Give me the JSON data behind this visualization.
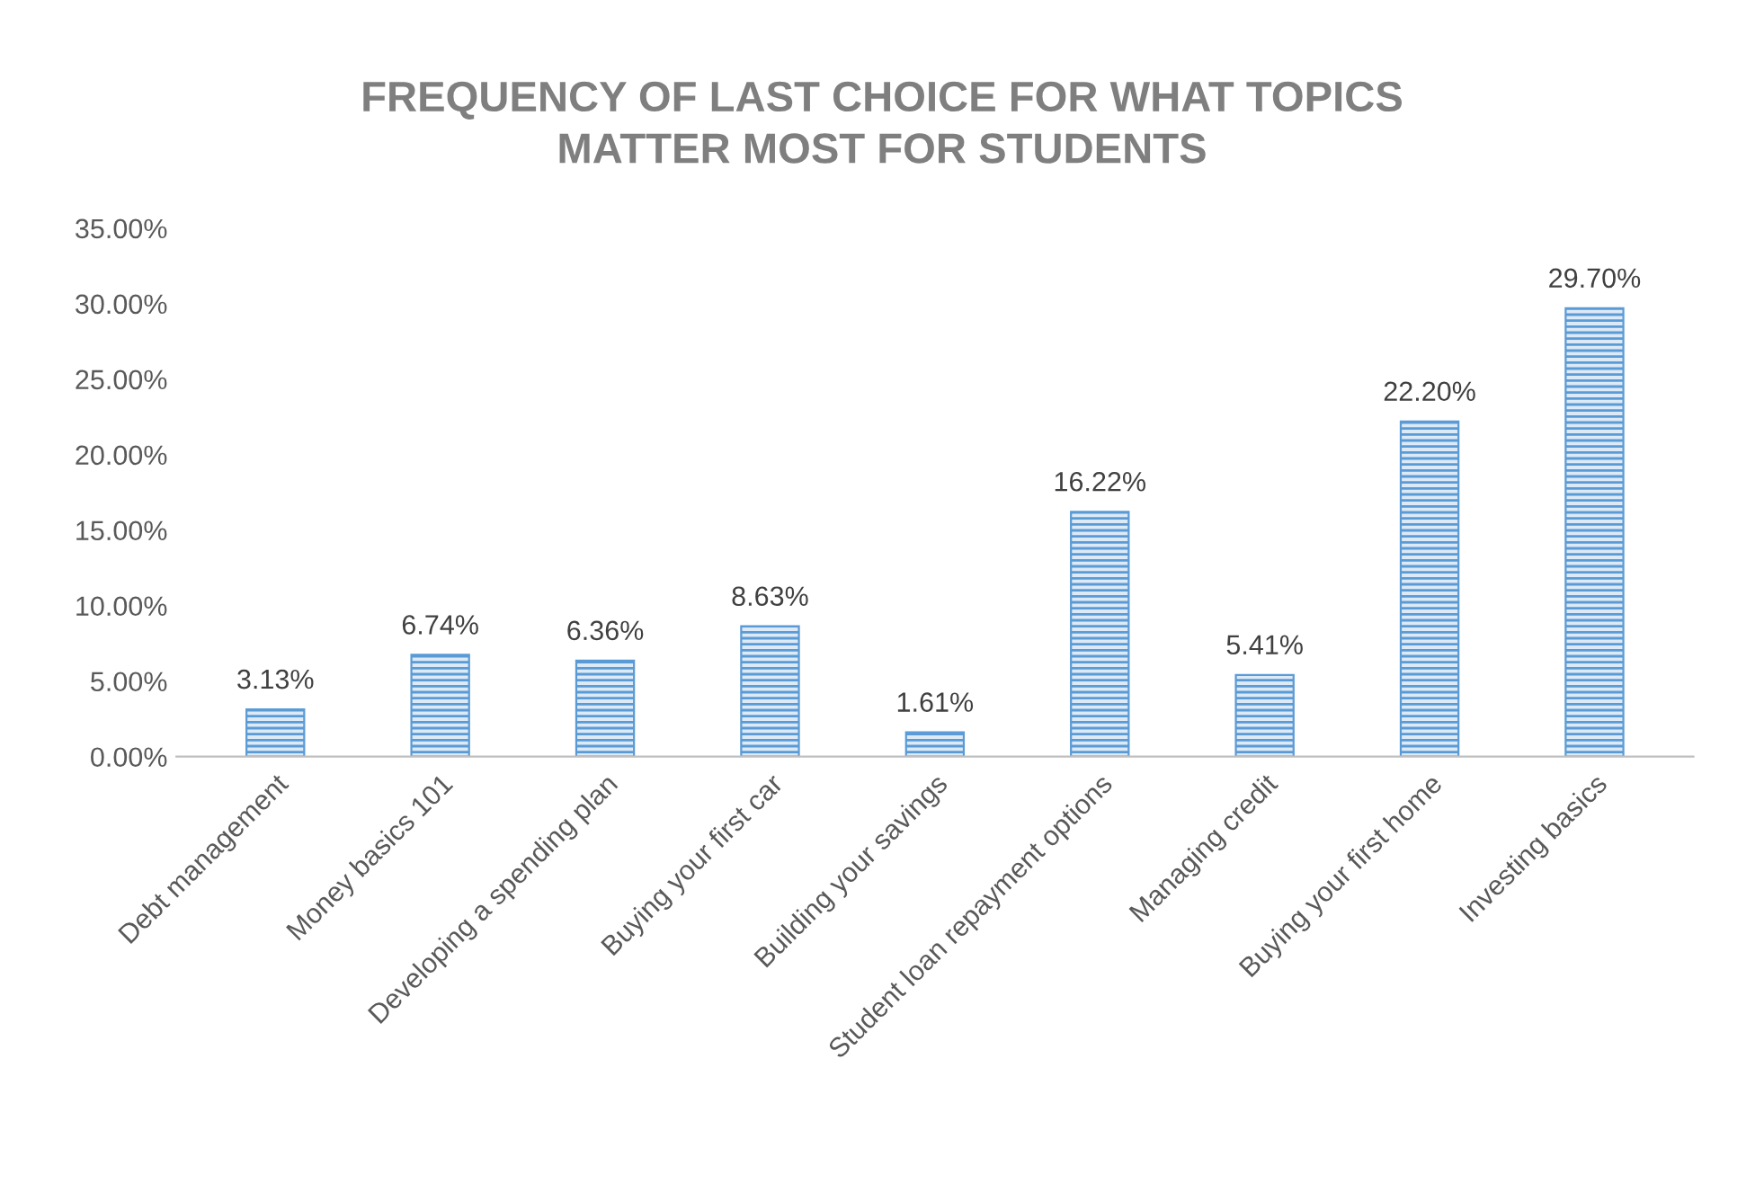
{
  "chart_data": {
    "type": "bar",
    "title": "FREQUENCY OF LAST CHOICE FOR WHAT TOPICS\nMATTER MOST FOR STUDENTS",
    "categories": [
      "Debt management",
      "Money basics 101",
      "Developing a spending plan",
      "Buying your first car",
      "Building your savings",
      "Student loan repayment options",
      "Managing credit",
      "Buying your first home",
      "Investing basics"
    ],
    "values": [
      3.13,
      6.74,
      6.36,
      8.63,
      1.61,
      16.22,
      5.41,
      22.2,
      29.7
    ],
    "value_labels": [
      "3.13%",
      "6.74%",
      "6.36%",
      "8.63%",
      "1.61%",
      "16.22%",
      "5.41%",
      "22.20%",
      "29.70%"
    ],
    "color": "#5b9bd5",
    "ylim": [
      0,
      35
    ],
    "yticks": [
      {
        "value": 0,
        "label": "0.00%"
      },
      {
        "value": 5,
        "label": "5.00%"
      },
      {
        "value": 10,
        "label": "10.00%"
      },
      {
        "value": 15,
        "label": "15.00%"
      },
      {
        "value": 20,
        "label": "20.00%"
      },
      {
        "value": 25,
        "label": "25.00%"
      },
      {
        "value": 30,
        "label": "30.00%"
      },
      {
        "value": 35,
        "label": "35.00%"
      }
    ],
    "grid": false,
    "legend": false
  }
}
